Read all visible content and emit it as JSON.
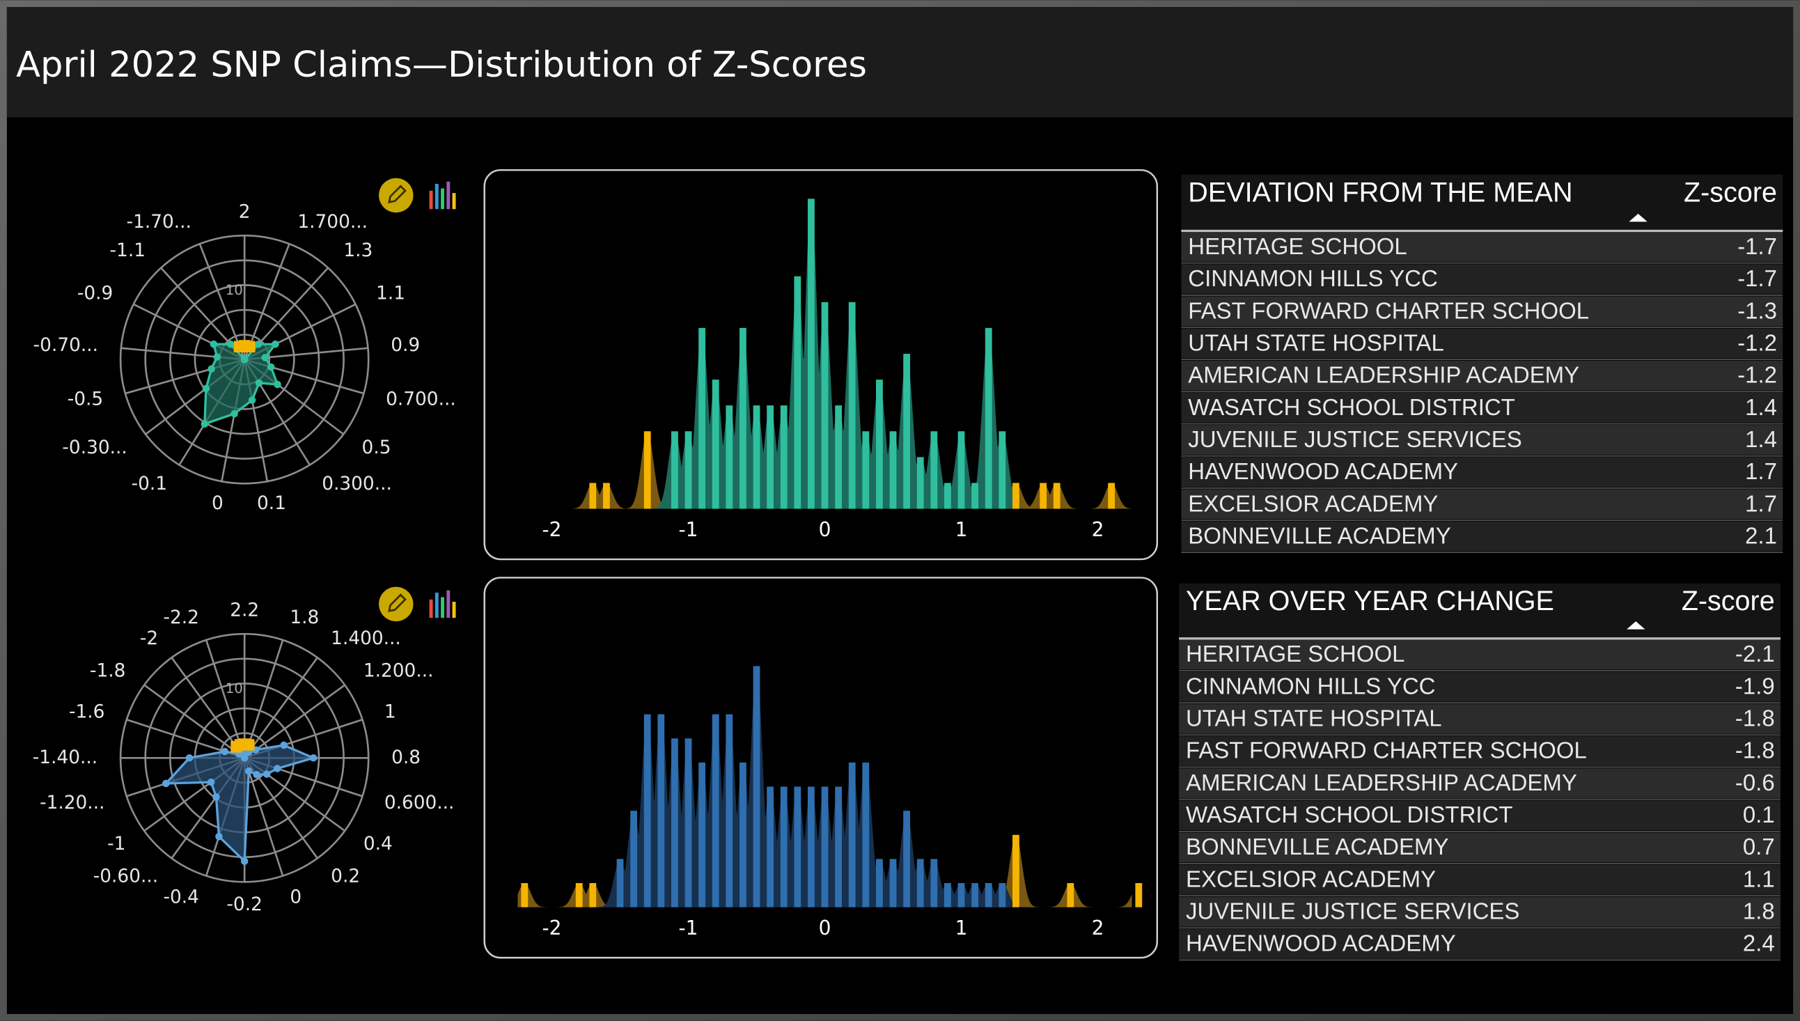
{
  "title": "April 2022 SNP Claims—Distribution of Z-Scores",
  "chart_data": [
    {
      "type": "radar",
      "categories": [
        "2",
        "1.700...",
        "1.3",
        "1.1",
        "0.9",
        "0.700...",
        "0.5",
        "0.300...",
        "0.1",
        "0",
        "-0.1",
        "-0.30...",
        "-0.5",
        "-0.70...",
        "-0.9",
        "-1.1",
        "-1.70..."
      ],
      "rlim": [
        0,
        18
      ],
      "rgrid": [
        3.6,
        7.2,
        10.8,
        14.4,
        18
      ],
      "rticks": [
        10
      ],
      "series": [
        {
          "color": "#2fbf9f",
          "fill": "#1f6b5c",
          "marker": "circle",
          "values": [
            0,
            0,
            3,
            5,
            3,
            4,
            6,
            4,
            6,
            8,
            11,
            7,
            5,
            4,
            5,
            3,
            0
          ]
        },
        {
          "color": "#f5b400",
          "marker": "square",
          "values": [
            2,
            2,
            null,
            null,
            null,
            null,
            null,
            null,
            null,
            null,
            null,
            null,
            null,
            null,
            null,
            null,
            2
          ]
        }
      ]
    },
    {
      "type": "bar",
      "xlim": [
        -2.25,
        2.25
      ],
      "ylim": [
        0,
        12
      ],
      "xticks": [
        -2,
        -1,
        0,
        1,
        2
      ],
      "series": [
        {
          "color": "#f5b400",
          "shade": "#7a5a10",
          "x": [
            -1.7,
            -1.6,
            -1.3,
            1.4,
            1.6,
            1.7,
            2.1
          ],
          "values": [
            1,
            1,
            3,
            1,
            1,
            1,
            1
          ]
        },
        {
          "color": "#2fbf9f",
          "shade": "#1d6b5c",
          "x": [
            -1.1,
            -1.0,
            -0.9,
            -0.8,
            -0.7,
            -0.6,
            -0.5,
            -0.4,
            -0.3,
            -0.2,
            -0.1,
            0,
            0.1,
            0.2,
            0.3,
            0.4,
            0.5,
            0.6,
            0.7,
            0.8,
            0.9,
            1.0,
            1.1,
            1.2,
            1.3
          ],
          "values": [
            3,
            3,
            7,
            5,
            4,
            7,
            4,
            4,
            4,
            9,
            12,
            8,
            4,
            8,
            3,
            5,
            3,
            6,
            2,
            3,
            1,
            3,
            1,
            7,
            3
          ]
        }
      ]
    },
    {
      "type": "radar",
      "categories": [
        "2.2",
        "1.8",
        "1.400...",
        "1.200...",
        "1",
        "0.8",
        "0.600...",
        "0.4",
        "0.2",
        "0",
        "-0.2",
        "-0.4",
        "-0.60...",
        "-1",
        "-1.20...",
        "-1.40...",
        "-1.6",
        "-1.8",
        "-2",
        "-2.2"
      ],
      "rlim": [
        0,
        18
      ],
      "rgrid": [
        3.6,
        7.2,
        10.8,
        14.4,
        18
      ],
      "rticks": [
        10
      ],
      "series": [
        {
          "color": "#5ba3dc",
          "fill": "#2a4f75",
          "marker": "circle",
          "values": [
            0,
            1,
            1,
            2,
            6,
            10,
            5,
            4,
            3,
            2,
            15,
            12,
            7,
            6,
            12,
            8,
            3,
            1,
            1,
            0
          ]
        },
        {
          "color": "#f5b400",
          "marker": "square",
          "values": [
            2,
            2,
            null,
            null,
            null,
            null,
            null,
            null,
            null,
            null,
            null,
            null,
            null,
            null,
            null,
            null,
            null,
            null,
            2,
            2
          ]
        }
      ]
    },
    {
      "type": "bar",
      "xlim": [
        -2.25,
        2.25
      ],
      "ylim": [
        0,
        10
      ],
      "xticks": [
        -2,
        -1,
        0,
        1,
        2
      ],
      "series": [
        {
          "color": "#f5b400",
          "shade": "#7a5a10",
          "x": [
            -2.2,
            -1.8,
            -1.7,
            1.4,
            1.8,
            2.3
          ],
          "values": [
            1,
            1,
            1,
            3,
            1,
            1
          ]
        },
        {
          "color": "#2f6fb0",
          "shade": "#17304d",
          "x": [
            -1.5,
            -1.4,
            -1.3,
            -1.2,
            -1.1,
            -1.0,
            -0.9,
            -0.8,
            -0.7,
            -0.6,
            -0.5,
            -0.4,
            -0.3,
            -0.2,
            -0.1,
            0,
            0.1,
            0.2,
            0.3,
            0.4,
            0.5,
            0.6,
            0.7,
            0.8,
            0.9,
            1.0,
            1.1,
            1.2,
            1.3
          ],
          "values": [
            2,
            4,
            8,
            8,
            7,
            7,
            6,
            8,
            8,
            6,
            10,
            5,
            5,
            5,
            5,
            5,
            5,
            6,
            6,
            2,
            2,
            4,
            2,
            2,
            1,
            1,
            1,
            1,
            1
          ]
        }
      ]
    }
  ],
  "tables": [
    {
      "header": [
        "DEVIATION FROM THE MEAN",
        "Z-score"
      ],
      "rows": [
        [
          "HERITAGE SCHOOL",
          -1.7
        ],
        [
          "CINNAMON HILLS YCC",
          -1.7
        ],
        [
          "FAST FORWARD CHARTER SCHOOL",
          -1.3
        ],
        [
          "UTAH STATE HOSPITAL",
          -1.2
        ],
        [
          "AMERICAN LEADERSHIP ACADEMY",
          -1.2
        ],
        [
          "WASATCH SCHOOL DISTRICT",
          1.4
        ],
        [
          "JUVENILE JUSTICE SERVICES",
          1.4
        ],
        [
          "HAVENWOOD ACADEMY",
          1.7
        ],
        [
          "EXCELSIOR ACADEMY",
          1.7
        ],
        [
          "BONNEVILLE ACADEMY",
          2.1
        ]
      ]
    },
    {
      "header": [
        "YEAR OVER YEAR CHANGE",
        "Z-score"
      ],
      "rows": [
        [
          "HERITAGE SCHOOL",
          -2.1
        ],
        [
          "CINNAMON HILLS YCC",
          -1.9
        ],
        [
          "UTAH STATE HOSPITAL",
          -1.8
        ],
        [
          "FAST FORWARD CHARTER SCHOOL",
          -1.8
        ],
        [
          "AMERICAN LEADERSHIP ACADEMY",
          -0.6
        ],
        [
          "WASATCH SCHOOL DISTRICT",
          0.1
        ],
        [
          "BONNEVILLE ACADEMY",
          0.7
        ],
        [
          "EXCELSIOR ACADEMY",
          1.1
        ],
        [
          "JUVENILE JUSTICE SERVICES",
          1.8
        ],
        [
          "HAVENWOOD ACADEMY",
          2.4
        ]
      ]
    }
  ]
}
